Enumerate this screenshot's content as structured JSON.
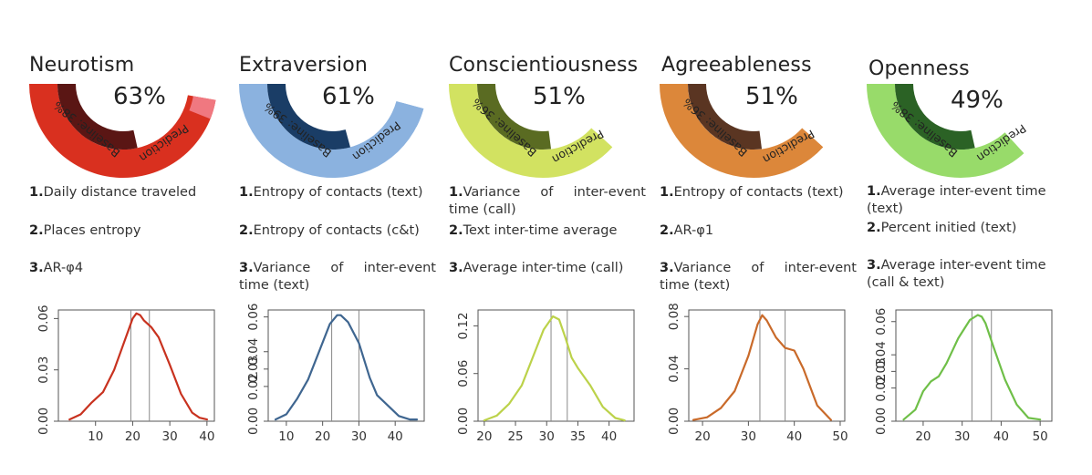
{
  "panels": [
    {
      "trait": "Neurotism",
      "percent": "63%",
      "baseline": "Baseline: 38%",
      "prediction": "Prediction",
      "baseline_value": 38,
      "prediction_value": 63,
      "colors": {
        "outer": "#d9301f",
        "inner": "#5a1614",
        "highlight": "#f07880"
      },
      "features": [
        {
          "num": "1.",
          "text": "Daily distance traveled"
        },
        {
          "num": "2.",
          "text": "Places entropy"
        },
        {
          "num": "3.",
          "text": "AR-φ4"
        }
      ]
    },
    {
      "trait": "Extraversion",
      "percent": "61%",
      "baseline": "Baseline: 39%",
      "prediction": "Prediction",
      "baseline_value": 39,
      "prediction_value": 61,
      "colors": {
        "outer": "#8bb2df",
        "inner": "#1a3d66",
        "highlight": "#8bb2df"
      },
      "features": [
        {
          "num": "1.",
          "text": "Entropy of contacts (text)"
        },
        {
          "num": "2.",
          "text": "Entropy of contacts (c&t)"
        },
        {
          "num": "3.",
          "text": "Variance of inter-event time (text)"
        }
      ]
    },
    {
      "trait": "Conscientiousness",
      "percent": "51%",
      "baseline": "Baseline: 36%",
      "prediction": "Prediction",
      "baseline_value": 36,
      "prediction_value": 51,
      "colors": {
        "outer": "#d2e261",
        "inner": "#5a6b22",
        "highlight": "#d2e261"
      },
      "features": [
        {
          "num": "1.",
          "text": "Variance of inter-event time (call)"
        },
        {
          "num": "2.",
          "text": "Text inter-time average"
        },
        {
          "num": "3.",
          "text": "Average inter-time (call)"
        }
      ]
    },
    {
      "trait": "Agreeableness",
      "percent": "51%",
      "baseline": "Baseline: 36%",
      "prediction": "Prediction",
      "baseline_value": 36,
      "prediction_value": 51,
      "colors": {
        "outer": "#dc873a",
        "inner": "#5a3522",
        "highlight": "#dc873a"
      },
      "features": [
        {
          "num": "1.",
          "text": "Entropy of contacts (text)"
        },
        {
          "num": "2.",
          "text": "AR-φ1"
        },
        {
          "num": "3.",
          "text": "Variance of inter-event time (text)"
        }
      ]
    },
    {
      "trait": "Openness",
      "percent": "49%",
      "baseline": "Baseline: 38%",
      "prediction": "Prediction",
      "baseline_value": 38,
      "prediction_value": 49,
      "colors": {
        "outer": "#98db6a",
        "inner": "#2b6225",
        "highlight": "#98db6a"
      },
      "features": [
        {
          "num": "1.",
          "text": "Average inter-event time (text)"
        },
        {
          "num": "2.",
          "text": "Percent initied (text)"
        },
        {
          "num": "3.",
          "text": "Average inter-event time (call & text)"
        }
      ]
    }
  ],
  "chart_data": [
    {
      "type": "line",
      "title": "Neurotism",
      "color": "#c8321f",
      "x": [
        3,
        6,
        9,
        12,
        15,
        18,
        20,
        21,
        22,
        23,
        25,
        27,
        30,
        33,
        36,
        38,
        40
      ],
      "y": [
        0.001,
        0.004,
        0.011,
        0.017,
        0.03,
        0.048,
        0.06,
        0.063,
        0.062,
        0.059,
        0.055,
        0.049,
        0.033,
        0.016,
        0.005,
        0.002,
        0.001
      ],
      "xlim": [
        0,
        42
      ],
      "ylim": [
        0,
        0.065
      ],
      "xticks": [
        10,
        20,
        30,
        40
      ],
      "yticks": [
        0.0,
        0.03,
        0.06
      ],
      "ytick_labels": [
        "0.00",
        "0.03",
        "0.06"
      ],
      "vlines": [
        19.5,
        24.5
      ]
    },
    {
      "type": "line",
      "title": "Extraversion",
      "color": "#3f6690",
      "x": [
        7,
        10,
        13,
        16,
        19,
        22,
        24,
        25,
        27,
        30,
        33,
        35,
        38,
        41,
        44,
        46
      ],
      "y": [
        0.001,
        0.004,
        0.013,
        0.024,
        0.04,
        0.056,
        0.061,
        0.061,
        0.057,
        0.045,
        0.025,
        0.015,
        0.009,
        0.003,
        0.001,
        0.001
      ],
      "xlim": [
        5,
        48
      ],
      "ylim": [
        0,
        0.064
      ],
      "xticks": [
        10,
        20,
        30,
        40
      ],
      "yticks": [
        0.0,
        0.02,
        0.03,
        0.04,
        0.06
      ],
      "ytick_labels": [
        "0.00",
        "0.02",
        "0.03",
        "0.04",
        "0.06"
      ],
      "vlines": [
        22.5,
        30
      ]
    },
    {
      "type": "line",
      "title": "Conscientiousness",
      "color": "#bcd24a",
      "x": [
        20,
        22,
        24,
        26,
        28,
        29.5,
        31,
        32,
        33,
        34,
        35,
        37,
        39,
        41,
        42.5
      ],
      "y": [
        0.001,
        0.007,
        0.022,
        0.045,
        0.085,
        0.115,
        0.132,
        0.128,
        0.105,
        0.08,
        0.067,
        0.045,
        0.018,
        0.004,
        0.001
      ],
      "xlim": [
        19,
        44
      ],
      "ylim": [
        0,
        0.14
      ],
      "xticks": [
        20,
        25,
        30,
        35,
        40
      ],
      "yticks": [
        0.0,
        0.06,
        0.12
      ],
      "ytick_labels": [
        "0.00",
        "0.06",
        "0.12"
      ],
      "vlines": [
        30.7,
        33.3
      ]
    },
    {
      "type": "line",
      "title": "Agreeableness",
      "color": "#c96a2a",
      "x": [
        18,
        21,
        24,
        27,
        30,
        32,
        33,
        34,
        36,
        38,
        40,
        42,
        45,
        48
      ],
      "y": [
        0.001,
        0.003,
        0.01,
        0.023,
        0.05,
        0.074,
        0.081,
        0.077,
        0.064,
        0.056,
        0.054,
        0.04,
        0.012,
        0.001
      ],
      "xlim": [
        17,
        51
      ],
      "ylim": [
        0,
        0.085
      ],
      "xticks": [
        20,
        30,
        40,
        50
      ],
      "yticks": [
        0.0,
        0.04,
        0.08
      ],
      "ytick_labels": [
        "0.00",
        "0.04",
        "0.08"
      ],
      "vlines": [
        32.5,
        38
      ]
    },
    {
      "type": "line",
      "title": "Openness",
      "color": "#6fbf48",
      "x": [
        15,
        18,
        20,
        22,
        24,
        26,
        29,
        32,
        34,
        35,
        36,
        38,
        41,
        44,
        47,
        50
      ],
      "y": [
        0.001,
        0.007,
        0.018,
        0.024,
        0.027,
        0.035,
        0.05,
        0.061,
        0.064,
        0.063,
        0.059,
        0.045,
        0.025,
        0.01,
        0.002,
        0.001
      ],
      "xlim": [
        13,
        53
      ],
      "ylim": [
        0,
        0.067
      ],
      "xticks": [
        20,
        30,
        40,
        50
      ],
      "yticks": [
        0.0,
        0.02,
        0.03,
        0.04,
        0.06
      ],
      "ytick_labels": [
        "0.00",
        "0.02",
        "0.03",
        "0.04",
        "0.06"
      ],
      "vlines": [
        32.5,
        37.5
      ]
    }
  ]
}
